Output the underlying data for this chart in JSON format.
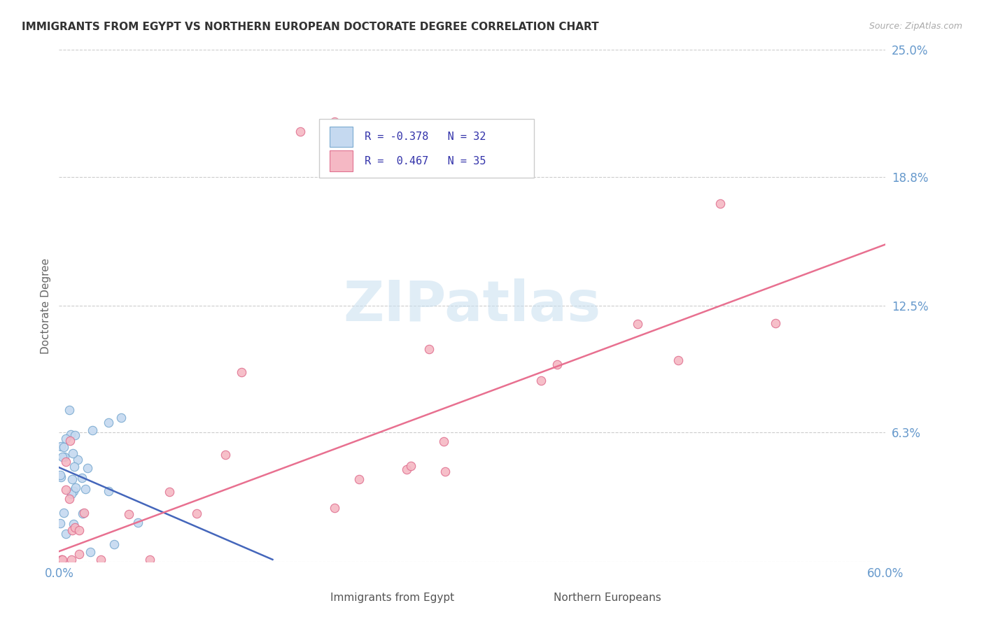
{
  "title": "IMMIGRANTS FROM EGYPT VS NORTHERN EUROPEAN DOCTORATE DEGREE CORRELATION CHART",
  "source": "Source: ZipAtlas.com",
  "ylabel": "Doctorate Degree",
  "xlim": [
    0.0,
    0.6
  ],
  "ylim": [
    0.0,
    0.25
  ],
  "ytick_vals": [
    0.0,
    0.063,
    0.125,
    0.188,
    0.25
  ],
  "ytick_labels": [
    "",
    "6.3%",
    "12.5%",
    "18.8%",
    "25.0%"
  ],
  "xtick_vals": [
    0.0,
    0.6
  ],
  "xtick_labels": [
    "0.0%",
    "60.0%"
  ],
  "background_color": "#ffffff",
  "grid_color": "#cccccc",
  "egypt_fill": "#c5d9f0",
  "egypt_edge": "#7aaad0",
  "northern_fill": "#f5b8c4",
  "northern_edge": "#e07090",
  "egypt_line_color": "#4466bb",
  "northern_line_color": "#e87090",
  "tick_color": "#6699cc",
  "ylabel_color": "#666666",
  "title_color": "#333333",
  "source_color": "#aaaaaa",
  "watermark_color": "#c8dff0",
  "legend_text_color": "#3333aa",
  "legend_R1": "R = -0.378",
  "legend_N1": "N = 32",
  "legend_R2": "R =  0.467",
  "legend_N2": "N = 35",
  "bottom_legend_color": "#555555"
}
